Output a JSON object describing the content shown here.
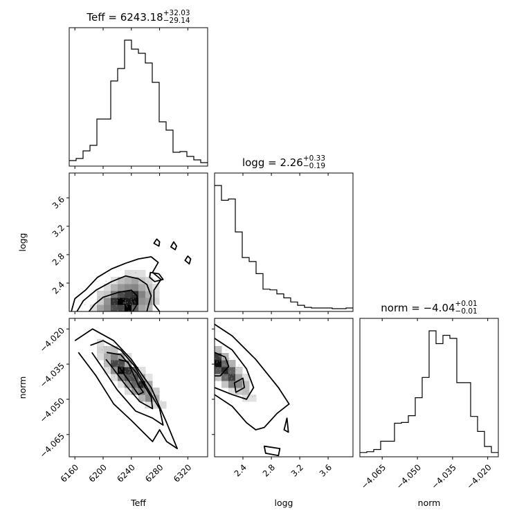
{
  "chart_data": {
    "type": "corner",
    "parameters": [
      {
        "name": "Teff",
        "label": "Teff",
        "title_prefix": "Teff = ",
        "median_text": "6243.18",
        "plus_text": "+32.03",
        "minus_text": "−29.14",
        "median": 6243.18,
        "plus": 32.03,
        "minus": 29.14,
        "range": [
          6152,
          6348
        ],
        "ticks": [
          6160,
          6200,
          6240,
          6280,
          6320
        ],
        "tick_labels": [
          "6160",
          "6200",
          "6240",
          "6280",
          "6320"
        ]
      },
      {
        "name": "logg",
        "label": "logg",
        "title_prefix": "logg = ",
        "median_text": "2.26",
        "plus_text": "+0.33",
        "minus_text": "−0.19",
        "median": 2.26,
        "plus": 0.33,
        "minus": 0.19,
        "range": [
          2.0,
          3.95
        ],
        "ticks": [
          2.4,
          2.8,
          3.2,
          3.6
        ],
        "tick_labels": [
          "2.4",
          "2.8",
          "3.2",
          "3.6"
        ]
      },
      {
        "name": "norm",
        "label": "norm",
        "title_prefix": "norm = ",
        "median_text": "−4.04",
        "plus_text": "+0.01",
        "minus_text": "−0.01",
        "median": -4.04,
        "plus": 0.01,
        "minus": 0.01,
        "range": [
          -4.0745,
          -4.0155
        ],
        "ticks": [
          -4.065,
          -4.05,
          -4.035,
          -4.02
        ],
        "tick_labels": [
          "−4.065",
          "−4.050",
          "−4.035",
          "−4.020"
        ]
      }
    ],
    "histograms": {
      "Teff": {
        "edges": [
          6152,
          6161.8,
          6171.6,
          6181.4,
          6191.2,
          6201,
          6210.8,
          6220.6,
          6230.4,
          6240.2,
          6250,
          6259.8,
          6269.6,
          6279.4,
          6289.2,
          6299,
          6308.8,
          6318.6,
          6328.4,
          6338.2,
          6348
        ],
        "counts": [
          4,
          7,
          18,
          26,
          64,
          64,
          119,
          137,
          178,
          165,
          159,
          145,
          117,
          60,
          48,
          16,
          17,
          10,
          5,
          1
        ]
      },
      "logg": {
        "edges": [
          2.0,
          2.0975,
          2.195,
          2.2925,
          2.39,
          2.4875,
          2.585,
          2.6825,
          2.78,
          2.8775,
          2.975,
          3.0725,
          3.17,
          3.2675,
          3.365,
          3.4625,
          3.56,
          3.6575,
          3.755,
          3.8525,
          3.95
        ],
        "counts": [
          183,
          161,
          163,
          114,
          76,
          70,
          52,
          29,
          28,
          22,
          16,
          10,
          5,
          2,
          1,
          1,
          1,
          0,
          0,
          1
        ]
      },
      "norm": {
        "edges": [
          -4.0745,
          -4.07155,
          -4.0686,
          -4.06565,
          -4.0627,
          -4.05975,
          -4.0568,
          -4.05385,
          -4.0509,
          -4.04795,
          -4.045,
          -4.04205,
          -4.0391,
          -4.03615,
          -4.0332,
          -4.03025,
          -4.0273,
          -4.02435,
          -4.0214,
          -4.01845,
          -4.0155
        ],
        "counts": [
          2,
          3,
          6,
          17,
          17,
          41,
          42,
          51,
          75,
          102,
          164,
          147,
          158,
          154,
          95,
          95,
          50,
          30,
          10,
          2
        ]
      }
    },
    "joint_panels": [
      {
        "x": "Teff",
        "y": "logg",
        "density_peak": [
          6230,
          2.08
        ],
        "contours": [
          [
            [
              6180,
              2.0
            ],
            [
              6188,
              2.1
            ],
            [
              6200,
              2.2
            ],
            [
              6222,
              2.27
            ],
            [
              6240,
              2.3
            ],
            [
              6248,
              2.22
            ],
            [
              6248,
              2.1
            ],
            [
              6242,
              2.0
            ]
          ],
          [
            [
              6163,
              2.0
            ],
            [
              6172,
              2.15
            ],
            [
              6190,
              2.3
            ],
            [
              6212,
              2.42
            ],
            [
              6232,
              2.5
            ],
            [
              6250,
              2.46
            ],
            [
              6262,
              2.38
            ],
            [
              6268,
              2.22
            ],
            [
              6264,
              2.08
            ],
            [
              6262,
              2.0
            ]
          ],
          [
            [
              6155,
              2.0
            ],
            [
              6160,
              2.18
            ],
            [
              6175,
              2.3
            ],
            [
              6192,
              2.48
            ],
            [
              6212,
              2.6
            ],
            [
              6232,
              2.68
            ],
            [
              6250,
              2.74
            ],
            [
              6268,
              2.77
            ],
            [
              6278,
              2.69
            ],
            [
              6270,
              2.55
            ],
            [
              6282,
              2.45
            ],
            [
              6272,
              2.3
            ],
            [
              6272,
              2.1
            ],
            [
              6280,
              2.0
            ]
          ]
        ],
        "islands": [
          [
            [
              6267,
              2.55
            ],
            [
              6279,
              2.53
            ],
            [
              6285,
              2.45
            ],
            [
              6273,
              2.42
            ],
            [
              6266,
              2.48
            ]
          ],
          [
            [
              6276,
              3.02
            ],
            [
              6272,
              2.96
            ],
            [
              6279,
              2.92
            ],
            [
              6280,
              2.98
            ]
          ],
          [
            [
              6300,
              2.98
            ],
            [
              6296,
              2.91
            ],
            [
              6302,
              2.87
            ],
            [
              6304,
              2.92
            ]
          ],
          [
            [
              6320,
              2.78
            ],
            [
              6316,
              2.72
            ],
            [
              6322,
              2.67
            ],
            [
              6324,
              2.74
            ]
          ]
        ]
      },
      {
        "x": "Teff",
        "y": "norm",
        "density_peak": [
          6238,
          -4.04
        ],
        "contours": [
          [
            [
              6222,
              -4.033
            ],
            [
              6235,
              -4.034
            ],
            [
              6250,
              -4.044
            ],
            [
              6257,
              -4.047
            ],
            [
              6250,
              -4.048
            ],
            [
              6236,
              -4.042
            ],
            [
              6222,
              -4.036
            ]
          ],
          [
            [
              6205,
              -4.03
            ],
            [
              6225,
              -4.031
            ],
            [
              6248,
              -4.039
            ],
            [
              6268,
              -4.049
            ],
            [
              6270,
              -4.054
            ],
            [
              6252,
              -4.051
            ],
            [
              6232,
              -4.044
            ],
            [
              6212,
              -4.036
            ],
            [
              6204,
              -4.033
            ]
          ],
          [
            [
              6182,
              -4.027
            ],
            [
              6200,
              -4.025
            ],
            [
              6225,
              -4.029
            ],
            [
              6245,
              -4.036
            ],
            [
              6268,
              -4.048
            ],
            [
              6280,
              -4.054
            ],
            [
              6285,
              -4.061
            ],
            [
              6270,
              -4.058
            ],
            [
              6246,
              -4.055
            ],
            [
              6220,
              -4.046
            ],
            [
              6200,
              -4.037
            ],
            [
              6184,
              -4.03
            ]
          ],
          [
            [
              6160,
              -4.025
            ],
            [
              6185,
              -4.02
            ],
            [
              6215,
              -4.025
            ],
            [
              6240,
              -4.033
            ],
            [
              6268,
              -4.045
            ],
            [
              6290,
              -4.06
            ],
            [
              6305,
              -4.071
            ],
            [
              6290,
              -4.068
            ],
            [
              6280,
              -4.063
            ],
            [
              6270,
              -4.068
            ],
            [
              6240,
              -4.059
            ],
            [
              6215,
              -4.052
            ],
            [
              6190,
              -4.04
            ],
            [
              6165,
              -4.03
            ]
          ]
        ],
        "islands": []
      },
      {
        "x": "logg",
        "y": "norm",
        "density_peak": [
          2.05,
          -4.035
        ],
        "contours": [
          [
            [
              2.0,
              -4.03
            ],
            [
              2.15,
              -4.032
            ],
            [
              2.2,
              -4.036
            ],
            [
              2.08,
              -4.04
            ],
            [
              2.0,
              -4.04
            ]
          ],
          [
            [
              2.0,
              -4.024
            ],
            [
              2.25,
              -4.029
            ],
            [
              2.45,
              -4.037
            ],
            [
              2.55,
              -4.045
            ],
            [
              2.45,
              -4.05
            ],
            [
              2.25,
              -4.048
            ],
            [
              2.0,
              -4.045
            ]
          ],
          [
            [
              2.0,
              -4.018
            ],
            [
              2.25,
              -4.023
            ],
            [
              2.58,
              -4.033
            ],
            [
              2.9,
              -4.045
            ],
            [
              3.05,
              -4.052
            ],
            [
              2.88,
              -4.056
            ],
            [
              2.7,
              -4.062
            ],
            [
              2.58,
              -4.063
            ],
            [
              2.45,
              -4.06
            ],
            [
              2.25,
              -4.053
            ],
            [
              2.0,
              -4.048
            ]
          ]
        ],
        "islands": [
          [
            [
              2.28,
              -4.043
            ],
            [
              2.4,
              -4.041
            ],
            [
              2.42,
              -4.045
            ],
            [
              2.3,
              -4.047
            ]
          ],
          [
            [
              3.02,
              -4.058
            ],
            [
              2.98,
              -4.063
            ],
            [
              3.04,
              -4.064
            ]
          ],
          [
            [
              2.7,
              -4.07
            ],
            [
              2.92,
              -4.071
            ],
            [
              2.9,
              -4.074
            ],
            [
              2.72,
              -4.073
            ]
          ]
        ]
      }
    ],
    "grid": false,
    "legend": "none"
  }
}
